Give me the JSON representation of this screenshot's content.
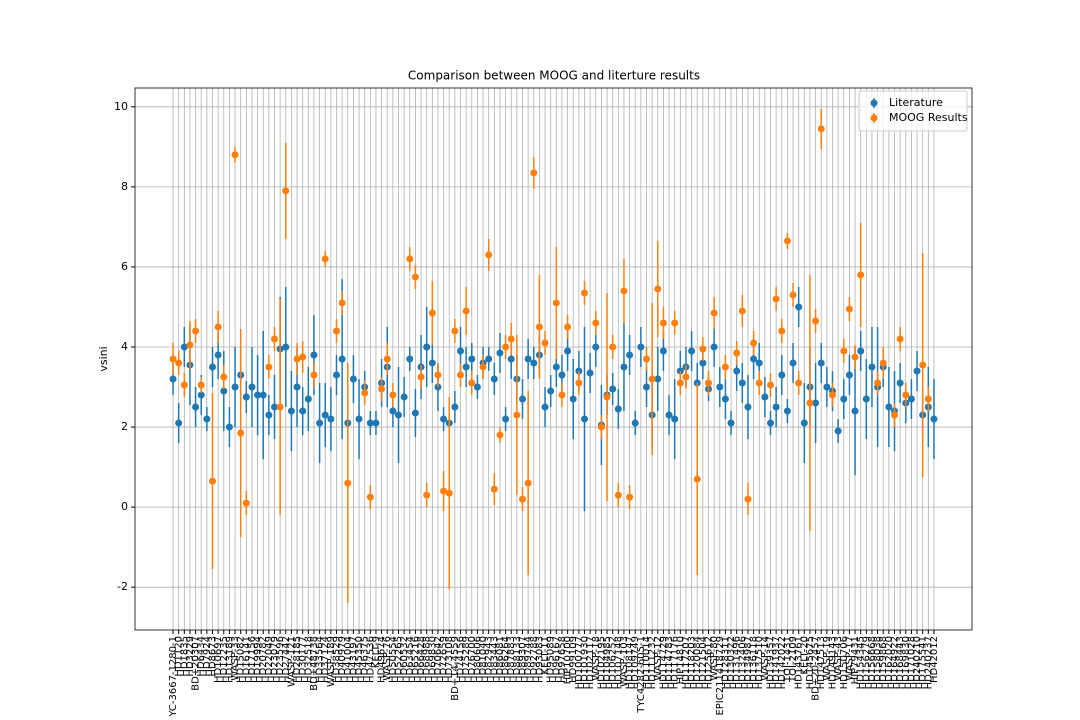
{
  "chart_data": {
    "type": "errorbar",
    "title": "Comparison between MOOG and literture results",
    "y_label": "vsini",
    "legend": "upper right",
    "grid": true,
    "ylim": [
      -3.07,
      10.47
    ],
    "yticks": [
      -2,
      0,
      2,
      4,
      6,
      8,
      10
    ],
    "categories": [
      "YC-3667-1280-1",
      "HD1120",
      "HD1835",
      "HD3229",
      "BD+20307",
      "HD6434",
      "HD7924",
      "HD8673",
      "HD10697",
      "HD12235",
      "HD13189",
      "WASP-33",
      "HD15082",
      "HD16141",
      "HD17156",
      "HD19994",
      "HD20782",
      "HD22049",
      "HD23079",
      "HD23596",
      "HD27442",
      "WASP-121",
      "HD28185",
      "HD30177",
      "HD32518",
      "BD+48738",
      "HD33564",
      "HD37124",
      "WASP-189",
      "HD38529",
      "HD40979",
      "HD41004",
      "HD43197",
      "HD45350",
      "HD46375",
      "HD47536",
      "KELT-9",
      "HD49674",
      "WASP-76",
      "HD50554",
      "HD52265",
      "HD60532",
      "HD63454",
      "HD65216",
      "HD66428",
      "HD68988",
      "HD69830",
      "HD70642",
      "HD72659",
      "HD73108",
      "BD+14-4559",
      "HD74156",
      "HD75289",
      "HD76700",
      "HD80606",
      "HD81040",
      "HD82943",
      "HD83443",
      "HD86081",
      "HD86264",
      "HD87883",
      "HD88133",
      "HD89307",
      "HD89744",
      "HD92788",
      "HD93083",
      "KELT-11",
      "HD95089",
      "HD96167",
      "HD97658",
      "HIP10700",
      "HD99109",
      "HD100777",
      "HD101930",
      "HD102117",
      "WASP-18",
      "HD102195",
      "HD104985",
      "HD106252",
      "HD107148",
      "WASP-103",
      "HD108147",
      "HD109749",
      "TYC4282-605-1",
      "HD110014",
      "HD111232",
      "WASP-12",
      "HD114729",
      "HD114783",
      "HD117176",
      "HIP14810",
      "HD117207",
      "HD118203",
      "HD120084",
      "HD121504",
      "HD125612",
      "WASP-80",
      "EPIC211418729",
      "HD128311",
      "HD130322",
      "HD131496",
      "HD132406",
      "HD134987",
      "HD136118",
      "HD137510",
      "WASP-14",
      "HD139357",
      "HD141937",
      "HD142022",
      "TOI-1431",
      "TOI-2109",
      "HD143761",
      "KELT-20",
      "HD145675",
      "BD+20-2457",
      "HD147513",
      "WASP-19",
      "HD149143",
      "WASP-43",
      "HD150706",
      "WASP-17",
      "HIP79431",
      "HD154345",
      "HD156279",
      "HD156668",
      "HD158038",
      "HD159868",
      "HD162020",
      "HD164922",
      "HD168443",
      "HD169830",
      "HD171028",
      "HD240210",
      "HD175541",
      "HD240237",
      "HD42012"
    ],
    "series": [
      {
        "name": "Literature",
        "color": "#1f77b4",
        "values": [
          3.2,
          2.1,
          4.0,
          3.55,
          2.5,
          2.8,
          2.2,
          3.5,
          3.8,
          2.9,
          2.0,
          3.0,
          3.3,
          2.75,
          3.0,
          2.8,
          2.8,
          2.3,
          2.5,
          3.95,
          4.0,
          2.4,
          3.0,
          2.4,
          2.7,
          3.8,
          2.1,
          2.3,
          2.2,
          3.3,
          3.7,
          2.1,
          3.2,
          2.2,
          3.0,
          2.1,
          2.1,
          3.1,
          3.5,
          2.4,
          2.3,
          2.75,
          3.7,
          2.35,
          3.5,
          4.0,
          3.6,
          3.0,
          2.2,
          2.1,
          2.5,
          3.9,
          3.5,
          3.7,
          3.0,
          3.6,
          3.7,
          3.2,
          3.85,
          2.2,
          3.7,
          3.2,
          2.7,
          3.7,
          3.6,
          3.8,
          2.5,
          2.9,
          3.5,
          3.3,
          3.9,
          2.7,
          3.4,
          2.2,
          3.35,
          4.0,
          2.05,
          2.8,
          2.95,
          2.45,
          3.5,
          3.8,
          2.1,
          4.0,
          3.0,
          2.3,
          3.2,
          3.9,
          2.3,
          2.2,
          3.4,
          3.5,
          3.9,
          3.1,
          3.6,
          2.95,
          4.0,
          3.0,
          2.7,
          2.1,
          3.4,
          3.1,
          2.5,
          3.7,
          3.6,
          2.75,
          2.1,
          2.5,
          3.3,
          2.4,
          3.6,
          5.0,
          2.1,
          3.0,
          2.6,
          3.6,
          3.0,
          2.9,
          1.9,
          2.7,
          3.3,
          2.4,
          3.9,
          2.7,
          3.5,
          3.0,
          3.5,
          2.5,
          2.4,
          3.1,
          2.6,
          2.7,
          3.4,
          2.3,
          2.5,
          2.2
        ],
        "errors": [
          0.4,
          0.5,
          0.5,
          1.0,
          0.5,
          0.5,
          0.3,
          0.5,
          0.6,
          1.0,
          0.5,
          1.0,
          0.7,
          0.4,
          1.0,
          1.0,
          1.6,
          0.5,
          0.8,
          1.3,
          1.5,
          1.0,
          1.0,
          0.6,
          0.8,
          1.0,
          1.0,
          0.8,
          0.8,
          0.5,
          2.0,
          0.5,
          0.6,
          1.0,
          0.4,
          0.3,
          0.3,
          0.6,
          1.0,
          0.4,
          1.2,
          0.5,
          0.3,
          0.6,
          0.8,
          1.0,
          0.5,
          0.6,
          0.3,
          0.3,
          0.4,
          0.6,
          0.5,
          0.4,
          0.3,
          0.4,
          0.3,
          0.4,
          0.5,
          0.3,
          0.5,
          0.6,
          0.5,
          0.5,
          0.4,
          0.5,
          0.5,
          0.4,
          0.5,
          0.5,
          0.5,
          1.0,
          0.5,
          2.3,
          0.5,
          0.5,
          1.0,
          0.5,
          0.4,
          0.5,
          1.1,
          0.5,
          0.3,
          0.5,
          0.5,
          0.8,
          0.8,
          0.5,
          0.5,
          1.0,
          0.5,
          0.5,
          0.5,
          0.5,
          0.4,
          0.3,
          0.5,
          0.5,
          0.5,
          0.3,
          0.5,
          0.5,
          0.8,
          0.5,
          0.5,
          0.5,
          0.3,
          0.5,
          0.5,
          0.3,
          0.5,
          0.5,
          1.0,
          1.0,
          1.0,
          0.5,
          0.5,
          0.5,
          0.3,
          0.5,
          0.5,
          1.6,
          0.5,
          1.0,
          1.0,
          1.5,
          0.5,
          1.0,
          1.0,
          0.5,
          0.5,
          0.5,
          0.5,
          0.5,
          1.0,
          1.0
        ]
      },
      {
        "name": "MOOG Results",
        "color": "#ff7f0e",
        "values": [
          3.7,
          3.6,
          3.05,
          4.05,
          4.4,
          3.05,
          null,
          0.65,
          4.5,
          3.25,
          null,
          8.8,
          1.85,
          0.1,
          null,
          null,
          null,
          3.5,
          4.2,
          2.5,
          7.9,
          null,
          3.7,
          3.75,
          null,
          3.3,
          null,
          6.2,
          null,
          4.4,
          5.1,
          0.6,
          null,
          null,
          2.85,
          0.25,
          null,
          2.95,
          3.7,
          2.8,
          null,
          null,
          6.2,
          5.75,
          3.25,
          0.3,
          4.85,
          3.3,
          0.4,
          0.35,
          4.4,
          3.3,
          4.9,
          3.1,
          null,
          3.5,
          6.3,
          0.45,
          1.8,
          4.0,
          4.2,
          2.3,
          0.2,
          0.6,
          8.35,
          4.5,
          4.1,
          null,
          5.1,
          2.8,
          4.5,
          null,
          3.1,
          5.35,
          null,
          4.6,
          2.0,
          2.75,
          4.0,
          0.3,
          5.4,
          0.25,
          null,
          null,
          3.7,
          3.2,
          5.45,
          4.6,
          null,
          4.6,
          3.1,
          3.25,
          null,
          0.7,
          3.95,
          3.1,
          4.85,
          null,
          3.5,
          null,
          3.85,
          4.9,
          0.2,
          4.1,
          3.1,
          null,
          3.05,
          5.2,
          4.4,
          6.65,
          5.3,
          3.1,
          null,
          2.6,
          4.65,
          9.45,
          null,
          2.8,
          null,
          3.9,
          4.95,
          3.75,
          5.8,
          null,
          null,
          3.1,
          3.6,
          null,
          2.3,
          4.2,
          2.8,
          null,
          null,
          3.55,
          2.7,
          null
        ],
        "errors": [
          0.4,
          0.3,
          0.3,
          0.6,
          0.3,
          0.2,
          null,
          2.2,
          0.4,
          0.3,
          null,
          0.2,
          2.6,
          0.3,
          null,
          null,
          null,
          0.3,
          0.3,
          2.7,
          1.2,
          null,
          0.4,
          0.4,
          null,
          0.3,
          null,
          0.2,
          null,
          0.3,
          0.3,
          3.0,
          null,
          null,
          0.3,
          0.3,
          null,
          0.3,
          0.4,
          0.3,
          null,
          null,
          0.3,
          0.3,
          0.3,
          0.3,
          0.8,
          0.3,
          0.5,
          2.4,
          0.3,
          0.3,
          0.6,
          0.3,
          null,
          0.3,
          0.4,
          0.4,
          0.2,
          0.3,
          0.4,
          2.0,
          0.3,
          2.3,
          0.4,
          1.3,
          0.3,
          null,
          1.4,
          0.3,
          0.3,
          null,
          0.3,
          0.3,
          null,
          0.3,
          0.3,
          2.6,
          0.3,
          0.3,
          0.8,
          0.3,
          null,
          null,
          0.3,
          1.9,
          1.2,
          0.4,
          null,
          0.3,
          0.3,
          0.3,
          null,
          2.4,
          0.3,
          0.3,
          0.4,
          null,
          0.3,
          null,
          0.3,
          0.4,
          0.4,
          0.3,
          0.3,
          null,
          0.3,
          0.3,
          0.3,
          0.2,
          0.3,
          0.3,
          null,
          3.2,
          0.3,
          0.5,
          null,
          0.3,
          null,
          0.3,
          0.3,
          0.3,
          1.3,
          null,
          null,
          0.3,
          0.4,
          null,
          0.3,
          0.3,
          0.3,
          null,
          null,
          2.8,
          0.3,
          null
        ]
      }
    ]
  }
}
